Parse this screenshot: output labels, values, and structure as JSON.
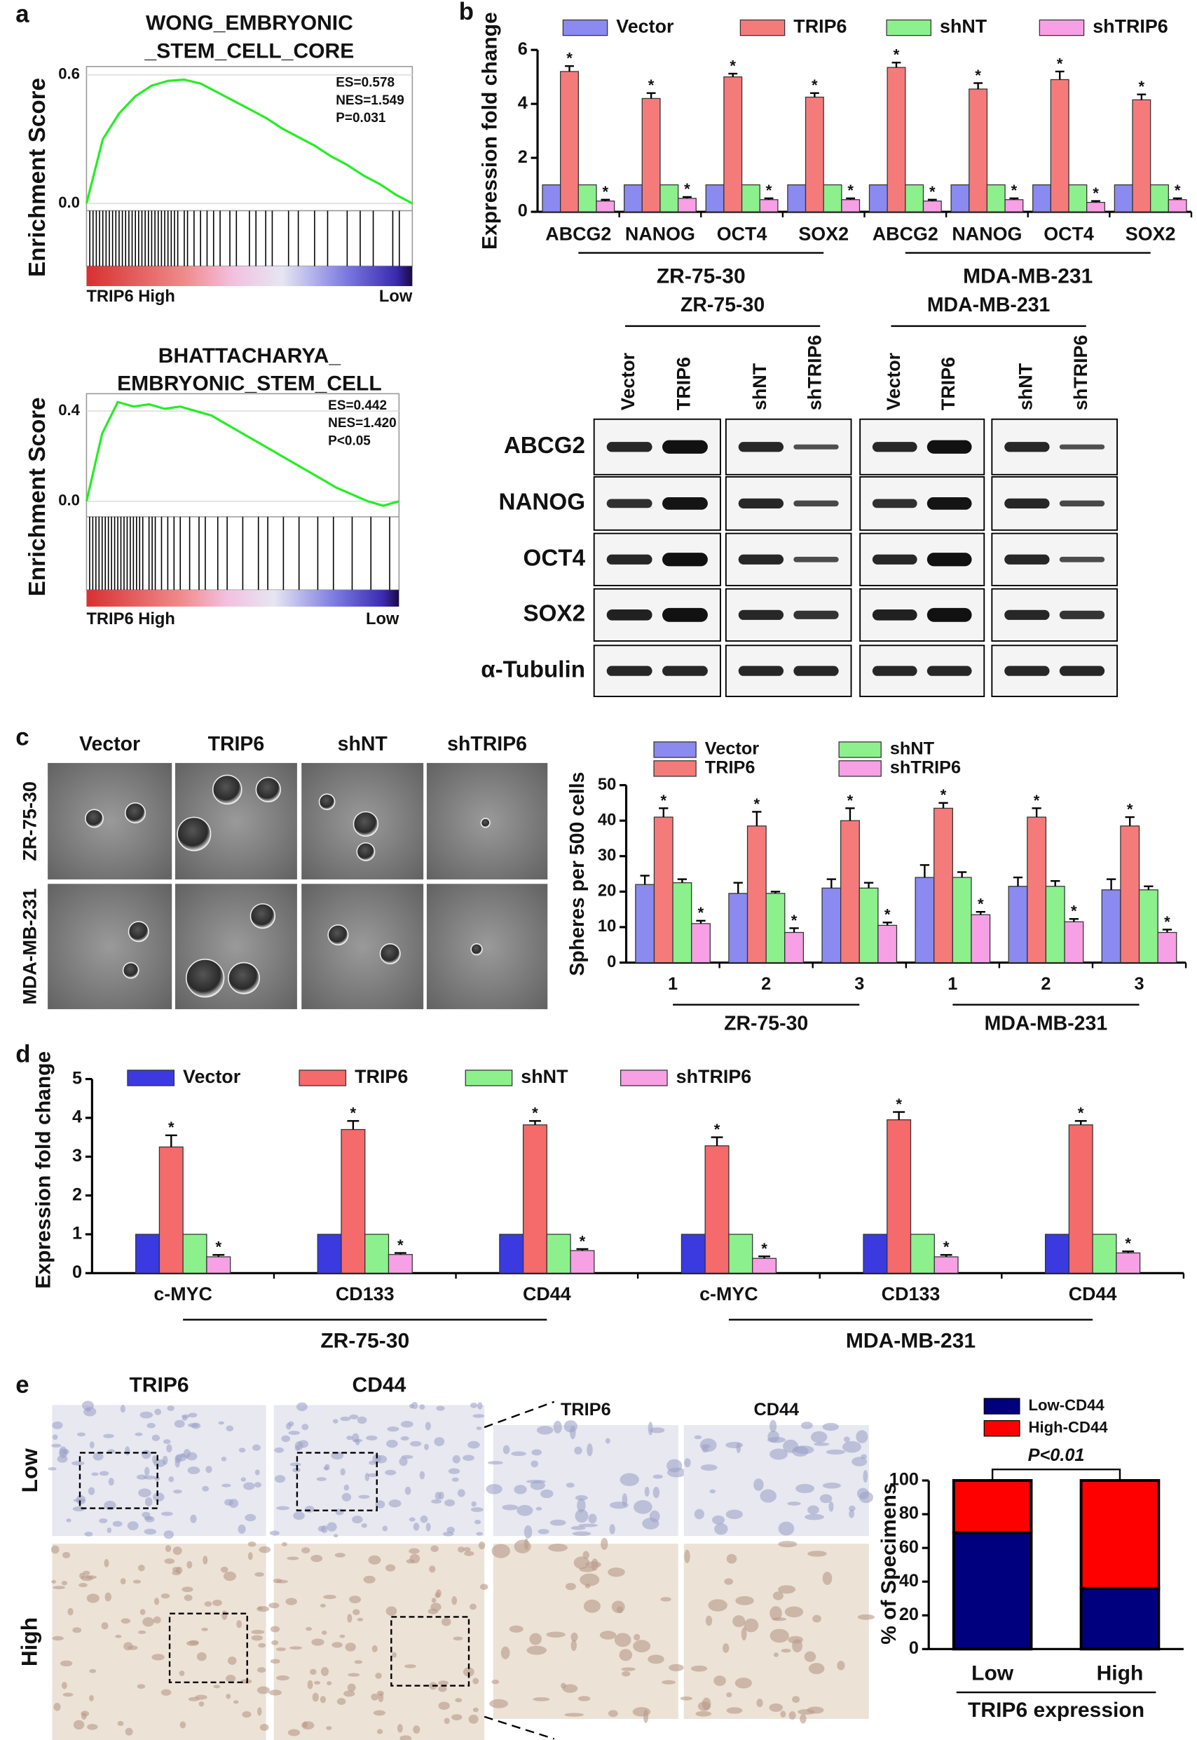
{
  "figure": {
    "panel_labels": [
      "a",
      "b",
      "c",
      "d",
      "e"
    ],
    "blot": {
      "groups": [
        "ZR-75-30",
        "MDA-MB-231"
      ],
      "lanes": [
        "Vector",
        "TRIP6",
        "shNT",
        "shTRIP6",
        "Vector",
        "TRIP6",
        "shNT",
        "shTRIP6"
      ],
      "proteins": [
        "ABCG2",
        "NANOG",
        "OCT4",
        "SOX2",
        "α-Tubulin"
      ]
    },
    "spheres": {
      "columns": [
        "Vector",
        "TRIP6",
        "shNT",
        "shTRIP6"
      ],
      "rows": [
        "ZR-75-30",
        "MDA-MB-231"
      ]
    },
    "ihc": {
      "columns": [
        "TRIP6",
        "CD44"
      ],
      "zoom_columns": [
        "TRIP6",
        "CD44"
      ],
      "rows": [
        "Low",
        "High"
      ]
    }
  },
  "chart_data": [
    {
      "type": "line",
      "title": [
        "WONG_EMBRYONIC",
        "_STEM_CELL_CORE"
      ],
      "y_label": "Enrichment Score",
      "x": [
        0,
        5,
        10,
        15,
        20,
        25,
        30,
        35,
        40,
        45,
        50,
        55,
        60,
        65,
        70,
        75,
        80,
        85,
        90,
        95,
        100
      ],
      "values": [
        0,
        0.3,
        0.42,
        0.5,
        0.55,
        0.572,
        0.578,
        0.56,
        0.52,
        0.48,
        0.44,
        0.4,
        0.35,
        0.31,
        0.27,
        0.22,
        0.18,
        0.13,
        0.09,
        0.04,
        0
      ],
      "xlim": [
        0,
        100
      ],
      "ylim": [
        -0.034,
        0.639
      ],
      "yticks": [
        {
          "value": 0,
          "label": "0.0"
        },
        0.6
      ],
      "grid": true,
      "color": "#22ee22",
      "hits": [
        1,
        2,
        3,
        4,
        5,
        6,
        7,
        8,
        9,
        10,
        11,
        12,
        13,
        14,
        15,
        16,
        17,
        18,
        19,
        20,
        21,
        22,
        23,
        24,
        25,
        26,
        27,
        28,
        30,
        31,
        33,
        35,
        37,
        39,
        41,
        44,
        46,
        50,
        52,
        55,
        57,
        62,
        65,
        70,
        74,
        80,
        84,
        88,
        94,
        96
      ],
      "annotations": [
        "ES=0.578",
        "NES=1.549",
        "P=0.031"
      ],
      "x_end_labels": [
        "TRIP6 High",
        "Low"
      ]
    },
    {
      "type": "line",
      "title": [
        "BHATTACHARYA_",
        "EMBRYONIC_STEM_CELL"
      ],
      "y_label": "Enrichment Score",
      "x": [
        0,
        5,
        10,
        15,
        20,
        25,
        30,
        35,
        40,
        45,
        50,
        55,
        60,
        65,
        70,
        75,
        80,
        85,
        90,
        95,
        100
      ],
      "values": [
        0,
        0.3,
        0.44,
        0.42,
        0.43,
        0.41,
        0.42,
        0.4,
        0.38,
        0.34,
        0.3,
        0.26,
        0.22,
        0.18,
        0.14,
        0.1,
        0.06,
        0.03,
        0,
        -0.02,
        0
      ],
      "xlim": [
        0,
        100
      ],
      "ylim": [
        -0.069,
        0.477
      ],
      "yticks": [
        {
          "value": 0,
          "label": "0.0"
        },
        0.4
      ],
      "grid": true,
      "color": "#22ee22",
      "hits": [
        1,
        2,
        3,
        4,
        5,
        6,
        7,
        8,
        9,
        10,
        11,
        12,
        13,
        14,
        15,
        16,
        17,
        18,
        20,
        21,
        22,
        24,
        26,
        28,
        30,
        33,
        36,
        38,
        42,
        45,
        50,
        55,
        58,
        63,
        68,
        74,
        79,
        85,
        91,
        97
      ],
      "annotations": [
        "ES=0.442",
        "NES=1.420",
        "P<0.05"
      ],
      "x_end_labels": [
        "TRIP6 High",
        "Low"
      ]
    },
    {
      "type": "bar",
      "y_label": "Expression fold change",
      "categories": [
        "ABCG2",
        "NANOG",
        "OCT4",
        "SOX2",
        "ABCG2",
        "NANOG",
        "OCT4",
        "SOX2"
      ],
      "groups": [
        "ZR-75-30",
        "MDA-MB-231"
      ],
      "series": [
        {
          "name": "Vector",
          "color": "#8a8af0",
          "values": [
            1,
            1,
            1,
            1,
            1,
            1,
            1,
            1
          ]
        },
        {
          "name": "TRIP6",
          "color": "#f57b7b",
          "values": [
            5.2,
            4.2,
            5.0,
            4.25,
            5.35,
            4.55,
            4.9,
            4.15
          ],
          "errors": [
            0.2,
            0.2,
            0.12,
            0.15,
            0.18,
            0.22,
            0.3,
            0.2
          ],
          "marker": "*"
        },
        {
          "name": "shNT",
          "color": "#8cf08c",
          "values": [
            1,
            1,
            1,
            1,
            1,
            1,
            1,
            1
          ]
        },
        {
          "name": "shTRIP6",
          "color": "#f7a0e6",
          "values": [
            0.4,
            0.5,
            0.45,
            0.45,
            0.4,
            0.45,
            0.35,
            0.45
          ],
          "errors": [
            0.05,
            0.05,
            0.05,
            0.05,
            0.05,
            0.05,
            0.05,
            0.05
          ],
          "marker": "*"
        }
      ],
      "ylim": [
        0,
        6
      ],
      "yticks": [
        0,
        2,
        4,
        6
      ]
    },
    {
      "type": "bar",
      "y_label": "Spheres per 500 cells",
      "categories": [
        "1",
        "2",
        "3",
        "1",
        "2",
        "3"
      ],
      "groups": [
        "ZR-75-30",
        "MDA-MB-231"
      ],
      "series": [
        {
          "name": "Vector",
          "color": "#8a8af0",
          "values": [
            22,
            19.5,
            21,
            24,
            21.5,
            20.5
          ],
          "errors": [
            2.5,
            3,
            2.5,
            3.5,
            2.5,
            3
          ]
        },
        {
          "name": "TRIP6",
          "color": "#f57b7b",
          "values": [
            41,
            38.5,
            40,
            43.5,
            41,
            38.5
          ],
          "errors": [
            2.5,
            4,
            3.5,
            1.5,
            2.5,
            2.5
          ],
          "marker": "*"
        },
        {
          "name": "shNT",
          "color": "#8cf08c",
          "values": [
            22.5,
            19.5,
            21,
            24,
            21.5,
            20.5
          ],
          "errors": [
            1,
            0.5,
            1.5,
            1.5,
            1.5,
            1
          ]
        },
        {
          "name": "shTRIP6",
          "color": "#f7a0e6",
          "values": [
            11,
            8.5,
            10.5,
            13.5,
            11.5,
            8.5
          ],
          "errors": [
            0.8,
            1.2,
            0.8,
            0.8,
            0.8,
            0.8
          ],
          "marker": "*"
        }
      ],
      "ylim": [
        0,
        50
      ],
      "yticks": [
        0,
        10,
        20,
        30,
        40,
        50
      ]
    },
    {
      "type": "bar",
      "y_label": "Expression fold change",
      "categories": [
        "c-MYC",
        "CD133",
        "CD44",
        "c-MYC",
        "CD133",
        "CD44"
      ],
      "groups": [
        "ZR-75-30",
        "MDA-MB-231"
      ],
      "series": [
        {
          "name": "Vector",
          "color": "#3a3ae0",
          "values": [
            1,
            1,
            1,
            1,
            1,
            1
          ]
        },
        {
          "name": "TRIP6",
          "color": "#f56a6a",
          "values": [
            3.25,
            3.7,
            3.82,
            3.28,
            3.95,
            3.82
          ],
          "errors": [
            0.3,
            0.22,
            0.1,
            0.22,
            0.2,
            0.1
          ],
          "marker": "*"
        },
        {
          "name": "shNT",
          "color": "#8cf08c",
          "values": [
            1,
            1,
            1,
            1,
            1,
            1
          ]
        },
        {
          "name": "shTRIP6",
          "color": "#f7a0e6",
          "values": [
            0.42,
            0.48,
            0.58,
            0.38,
            0.42,
            0.52
          ],
          "errors": [
            0.05,
            0.04,
            0.04,
            0.05,
            0.05,
            0.04
          ],
          "marker": "*"
        }
      ],
      "ylim": [
        0,
        5
      ],
      "yticks": [
        0,
        1,
        2,
        3,
        4,
        5
      ]
    },
    {
      "type": "stacked_bar",
      "y_label": "% of Specimens",
      "x_label": "TRIP6 expression",
      "categories": [
        "Low",
        "High"
      ],
      "series": [
        {
          "name": "Low-CD44",
          "color": "#00007f",
          "values": [
            69,
            36
          ]
        },
        {
          "name": "High-CD44",
          "color": "#ff0000",
          "values": [
            31,
            64
          ]
        }
      ],
      "annotation": "P<0.01",
      "ylim": [
        0,
        100
      ],
      "yticks": [
        0,
        20,
        40,
        60,
        80,
        100
      ]
    }
  ]
}
